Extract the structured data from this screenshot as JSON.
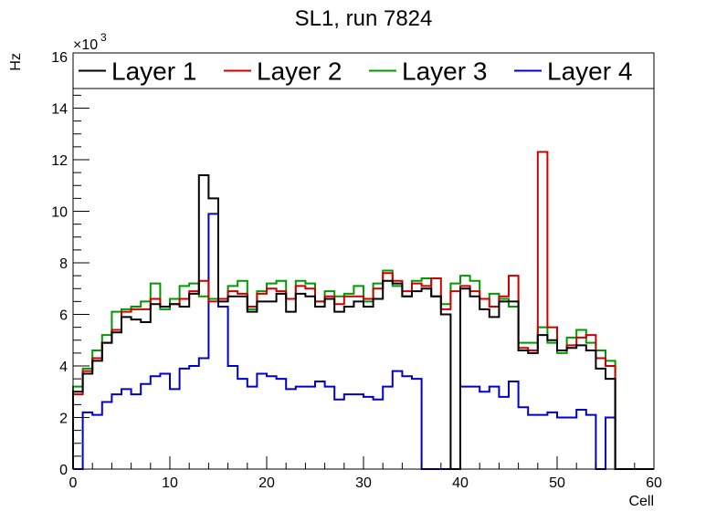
{
  "chart_data": {
    "type": "line",
    "title": "SL1, run 7824",
    "xlabel": "Cell",
    "ylabel": "Hz",
    "y_multiplier": "×10",
    "y_multiplier_exp": "3",
    "xlim": [
      0,
      60
    ],
    "ylim": [
      0,
      16
    ],
    "x_ticks": [
      "0",
      "10",
      "20",
      "30",
      "40",
      "50",
      "60"
    ],
    "y_ticks": [
      "0",
      "2",
      "4",
      "6",
      "8",
      "10",
      "12",
      "14",
      "16"
    ],
    "legend_position": "top",
    "bin_edges_start": 0,
    "bin_width": 1,
    "series": [
      {
        "name": "Layer 1",
        "color": "#000000",
        "values": [
          3.0,
          3.7,
          4.2,
          4.9,
          5.3,
          5.9,
          5.8,
          5.7,
          6.4,
          6.3,
          6.4,
          6.3,
          6.8,
          11.4,
          10.5,
          6.5,
          6.7,
          6.7,
          6.1,
          6.5,
          6.5,
          6.8,
          6.1,
          6.8,
          6.7,
          6.3,
          6.6,
          6.1,
          6.3,
          6.5,
          6.3,
          6.6,
          7.3,
          7.2,
          6.7,
          6.9,
          7.0,
          6.7,
          6.0,
          0.0,
          7.0,
          6.7,
          6.2,
          5.9,
          6.5,
          6.5,
          4.6,
          4.5,
          5.2,
          5.0,
          4.6,
          4.7,
          4.8,
          4.6,
          3.9,
          3.5,
          0.0,
          0.0,
          0.0,
          0.0
        ]
      },
      {
        "name": "Layer 2",
        "color": "#cc0000",
        "values": [
          2.9,
          3.8,
          4.3,
          4.9,
          5.4,
          6.1,
          6.2,
          6.2,
          6.6,
          6.3,
          6.4,
          6.6,
          6.9,
          7.3,
          6.5,
          6.6,
          6.9,
          6.8,
          6.3,
          6.8,
          7.0,
          6.9,
          6.6,
          7.1,
          7.0,
          6.5,
          6.7,
          6.4,
          6.7,
          6.7,
          6.6,
          7.0,
          7.6,
          7.3,
          6.9,
          7.2,
          7.1,
          7.4,
          6.2,
          6.9,
          7.1,
          6.9,
          6.6,
          6.3,
          6.7,
          7.5,
          4.7,
          4.6,
          12.3,
          5.5,
          4.6,
          4.8,
          5.1,
          5.2,
          4.3,
          4.0,
          0.0,
          0.0,
          0.0,
          0.0
        ]
      },
      {
        "name": "Layer 3",
        "color": "#009900",
        "values": [
          3.2,
          3.9,
          4.6,
          5.2,
          6.1,
          6.2,
          6.3,
          6.5,
          7.2,
          6.2,
          6.6,
          7.1,
          7.2,
          6.7,
          6.6,
          6.6,
          7.1,
          7.3,
          6.2,
          6.9,
          7.2,
          7.3,
          6.6,
          7.3,
          7.2,
          6.5,
          6.9,
          6.7,
          6.8,
          7.1,
          6.5,
          7.2,
          7.7,
          7.1,
          6.7,
          7.3,
          7.4,
          6.7,
          6.4,
          7.2,
          7.5,
          7.3,
          6.6,
          6.8,
          6.6,
          6.3,
          4.9,
          4.9,
          5.5,
          4.9,
          4.5,
          5.1,
          5.4,
          4.9,
          4.6,
          4.2,
          0.0,
          0.0,
          0.0,
          0.0
        ]
      },
      {
        "name": "Layer 4",
        "color": "#0000cc",
        "values": [
          0.0,
          2.2,
          2.1,
          2.6,
          2.9,
          3.1,
          2.9,
          3.3,
          3.6,
          3.7,
          3.1,
          3.9,
          4.0,
          4.3,
          9.9,
          6.3,
          4.0,
          3.5,
          3.2,
          3.7,
          3.6,
          3.5,
          3.1,
          3.2,
          3.2,
          3.4,
          3.2,
          2.7,
          2.9,
          2.9,
          2.8,
          2.7,
          3.2,
          3.8,
          3.6,
          3.5,
          0.0,
          0.0,
          0.0,
          0.0,
          3.2,
          3.2,
          3.0,
          3.2,
          2.8,
          3.4,
          2.4,
          2.1,
          2.1,
          2.2,
          2.0,
          2.0,
          2.3,
          2.1,
          0.0,
          2.0,
          0.0,
          0.0,
          0.0,
          0.0
        ]
      }
    ]
  }
}
